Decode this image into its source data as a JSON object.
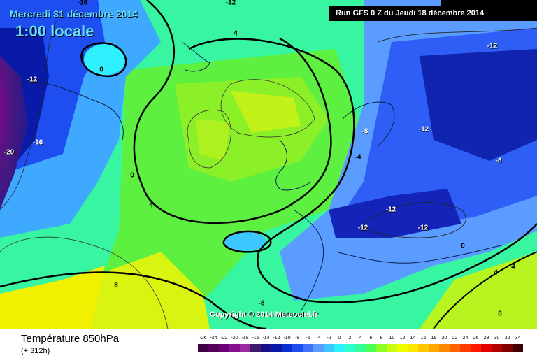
{
  "header": {
    "date": "Mercredi 31 décembre 2014",
    "local_time": "1:00 locale",
    "run_info": "Run GFS 0 Z du Jeudi 18 décembre 2014"
  },
  "map": {
    "copyright": "Copyright © 2014 Meteociel.fr",
    "labels": [
      {
        "text": "-16",
        "color": "#000000"
      },
      {
        "text": "-12",
        "color": "#000000"
      },
      {
        "text": "-12",
        "color": "#ffffff"
      },
      {
        "text": "4",
        "color": "#000000"
      },
      {
        "text": "0",
        "color": "#000000"
      },
      {
        "text": "-12",
        "color": "#ffffff"
      },
      {
        "text": "-20",
        "color": "#ffffff"
      },
      {
        "text": "-16",
        "color": "#ffffff"
      },
      {
        "text": "0",
        "color": "#000000"
      },
      {
        "text": "4",
        "color": "#000000"
      },
      {
        "text": "8",
        "color": "#000000"
      },
      {
        "text": "-12",
        "color": "#ffffff"
      },
      {
        "text": "-8",
        "color": "#ffffff"
      },
      {
        "text": "-12",
        "color": "#ffffff"
      },
      {
        "text": "-4",
        "color": "#000000"
      },
      {
        "text": "-8",
        "color": "#ffffff"
      },
      {
        "text": "-12",
        "color": "#ffffff"
      },
      {
        "text": "-12",
        "color": "#ffffff"
      },
      {
        "text": "0",
        "color": "#000000"
      },
      {
        "text": "4",
        "color": "#000000"
      },
      {
        "text": "4",
        "color": "#000000"
      },
      {
        "text": "8",
        "color": "#000000"
      },
      {
        "text": "-8",
        "color": "#000000"
      }
    ]
  },
  "legend": {
    "title": "Température 850hPa",
    "forecast_step": "(+ 312h)",
    "scale": [
      {
        "value": "-26",
        "color": "#3d0040"
      },
      {
        "value": "-24",
        "color": "#55005a"
      },
      {
        "value": "-22",
        "color": "#6e0075"
      },
      {
        "value": "-20",
        "color": "#87108e"
      },
      {
        "value": "-18",
        "color": "#9a2aa0"
      },
      {
        "value": "-16",
        "color": "#40186e"
      },
      {
        "value": "-14",
        "color": "#1a0f85"
      },
      {
        "value": "-12",
        "color": "#0a1aa8"
      },
      {
        "value": "-10",
        "color": "#0a2fd0"
      },
      {
        "value": "-8",
        "color": "#1e4ef0"
      },
      {
        "value": "-6",
        "color": "#3f74fa"
      },
      {
        "value": "-4",
        "color": "#5a9cff"
      },
      {
        "value": "-2",
        "color": "#3cc8ff"
      },
      {
        "value": "0",
        "color": "#2ef0ff"
      },
      {
        "value": "2",
        "color": "#30ffd0"
      },
      {
        "value": "4",
        "color": "#34ff9a"
      },
      {
        "value": "6",
        "color": "#4cff50"
      },
      {
        "value": "8",
        "color": "#8cff20"
      },
      {
        "value": "10",
        "color": "#c8ff10"
      },
      {
        "value": "12",
        "color": "#f0ff00"
      },
      {
        "value": "14",
        "color": "#ffe800"
      },
      {
        "value": "16",
        "color": "#ffc800"
      },
      {
        "value": "18",
        "color": "#ffa800"
      },
      {
        "value": "20",
        "color": "#ff8800"
      },
      {
        "value": "22",
        "color": "#ff6400"
      },
      {
        "value": "24",
        "color": "#ff3c00"
      },
      {
        "value": "26",
        "color": "#ff1800"
      },
      {
        "value": "28",
        "color": "#e00000"
      },
      {
        "value": "30",
        "color": "#b00000"
      },
      {
        "value": "32",
        "color": "#800000"
      },
      {
        "value": "34",
        "color": "#400000"
      }
    ]
  }
}
